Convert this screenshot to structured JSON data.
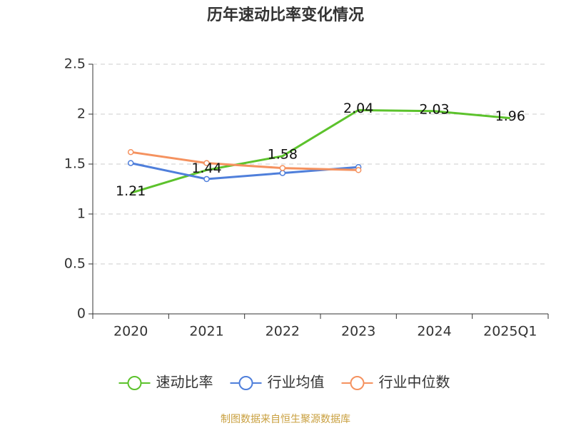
{
  "chart_data": {
    "type": "line",
    "title": "历年速动比率变化情况",
    "categories": [
      "2020",
      "2021",
      "2022",
      "2023",
      "2024",
      "2025Q1"
    ],
    "series": [
      {
        "name": "速动比率",
        "color": "#5cc22c",
        "values": [
          1.21,
          1.44,
          1.58,
          2.04,
          2.03,
          1.96
        ],
        "labels": true
      },
      {
        "name": "行业均值",
        "color": "#4f7fdb",
        "values": [
          1.51,
          1.35,
          1.41,
          1.47,
          null,
          null
        ]
      },
      {
        "name": "行业中位数",
        "color": "#f5925f",
        "values": [
          1.62,
          1.51,
          1.46,
          1.44,
          null,
          null
        ]
      }
    ],
    "ylim": [
      0,
      2.5
    ],
    "yticks": [
      0,
      0.5,
      1,
      1.5,
      2,
      2.5
    ],
    "grid": true,
    "legend": "bottom",
    "source": "制图数据来自恒生聚源数据库"
  }
}
